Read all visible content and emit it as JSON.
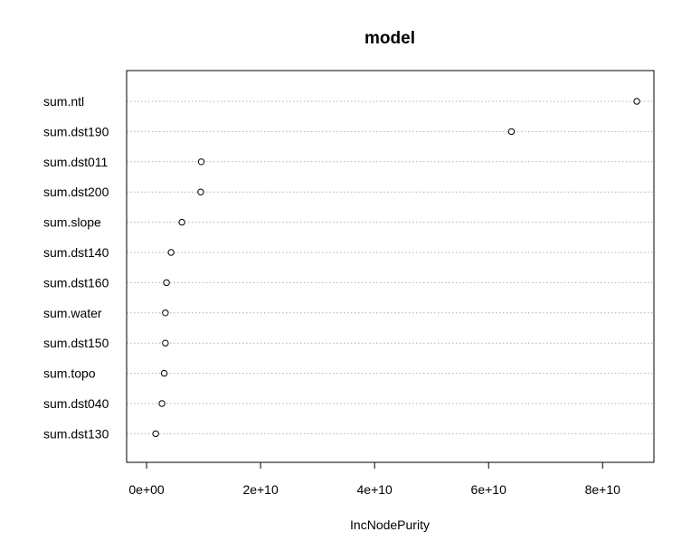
{
  "chart_data": {
    "type": "scatter",
    "title": "model",
    "xlabel": "IncNodePurity",
    "ylabel": "",
    "xlim": [
      -3500000000,
      89000000000
    ],
    "xticks": [
      0,
      20000000000,
      40000000000,
      60000000000,
      80000000000
    ],
    "xtick_labels": [
      "0e+00",
      "2e+10",
      "4e+10",
      "6e+10",
      "8e+10"
    ],
    "grid": "horizontal dotted",
    "categories": [
      "sum.ntl",
      "sum.dst190",
      "sum.dst011",
      "sum.dst200",
      "sum.slope",
      "sum.dst140",
      "sum.dst160",
      "sum.water",
      "sum.dst150",
      "sum.topo",
      "sum.dst040",
      "sum.dst130"
    ],
    "values": [
      86000000000,
      64000000000,
      9600000000,
      9500000000,
      6200000000,
      4300000000,
      3500000000,
      3300000000,
      3300000000,
      3100000000,
      2700000000,
      1600000000
    ]
  }
}
